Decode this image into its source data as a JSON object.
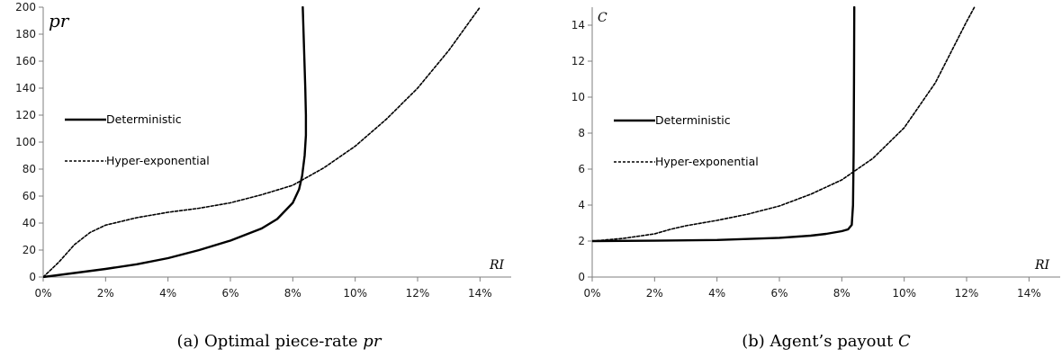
{
  "chart_data": [
    {
      "type": "line",
      "caption": "(a) Optimal piece-rate",
      "caption_var": "pr",
      "ylabel": "pr",
      "xlabel": "RI",
      "xlim": [
        0,
        0.15
      ],
      "ylim": [
        0,
        200
      ],
      "x_ticks": [
        0,
        0.02,
        0.04,
        0.06,
        0.08,
        0.1,
        0.12,
        0.14
      ],
      "x_tick_labels": [
        "0%",
        "2%",
        "4%",
        "6%",
        "8%",
        "10%",
        "12%",
        "14%"
      ],
      "y_ticks": [
        0,
        20,
        40,
        60,
        80,
        100,
        120,
        140,
        160,
        180,
        200
      ],
      "y_tick_labels": [
        "0",
        "20",
        "40",
        "60",
        "80",
        "100",
        "120",
        "140",
        "160",
        "180",
        "200"
      ],
      "grid": false,
      "legend_position": "middle-left",
      "series": [
        {
          "name": "Deterministic",
          "style": "solid",
          "points": [
            [
              0,
              0
            ],
            [
              0.01,
              3
            ],
            [
              0.02,
              6
            ],
            [
              0.03,
              9.5
            ],
            [
              0.04,
              14
            ],
            [
              0.05,
              20
            ],
            [
              0.06,
              27
            ],
            [
              0.07,
              36
            ],
            [
              0.075,
              43
            ],
            [
              0.08,
              55
            ],
            [
              0.082,
              65
            ],
            [
              0.083,
              75
            ],
            [
              0.0838,
              90
            ],
            [
              0.0842,
              105
            ],
            [
              0.0842,
              120
            ],
            [
              0.084,
              140
            ],
            [
              0.0836,
              170
            ],
            [
              0.0832,
              200
            ]
          ]
        },
        {
          "name": "Hyper-exponential",
          "style": "dashed",
          "points": [
            [
              0,
              0
            ],
            [
              0.005,
              11
            ],
            [
              0.01,
              24
            ],
            [
              0.015,
              33
            ],
            [
              0.02,
              38.5
            ],
            [
              0.03,
              44
            ],
            [
              0.04,
              48
            ],
            [
              0.05,
              51
            ],
            [
              0.06,
              55
            ],
            [
              0.07,
              61
            ],
            [
              0.08,
              68
            ],
            [
              0.09,
              81
            ],
            [
              0.1,
              97
            ],
            [
              0.11,
              117
            ],
            [
              0.12,
              140
            ],
            [
              0.13,
              168
            ],
            [
              0.14,
              200
            ]
          ]
        }
      ]
    },
    {
      "type": "line",
      "caption": "(b) Agent’s payout",
      "caption_var": "C",
      "ylabel": "C",
      "xlabel": "RI",
      "xlim": [
        0,
        0.15
      ],
      "ylim": [
        0,
        15
      ],
      "x_ticks": [
        0,
        0.02,
        0.04,
        0.06,
        0.08,
        0.1,
        0.12,
        0.14
      ],
      "x_tick_labels": [
        "0%",
        "2%",
        "4%",
        "6%",
        "8%",
        "10%",
        "12%",
        "14%"
      ],
      "y_ticks": [
        0,
        2,
        4,
        6,
        8,
        10,
        12,
        14
      ],
      "y_tick_labels": [
        "0",
        "2",
        "4",
        "6",
        "8",
        "10",
        "12",
        "14"
      ],
      "grid": false,
      "legend_position": "upper-left",
      "series": [
        {
          "name": "Deterministic",
          "style": "solid",
          "points": [
            [
              0,
              2
            ],
            [
              0.02,
              2.02
            ],
            [
              0.04,
              2.06
            ],
            [
              0.06,
              2.18
            ],
            [
              0.07,
              2.3
            ],
            [
              0.075,
              2.4
            ],
            [
              0.08,
              2.55
            ],
            [
              0.082,
              2.65
            ],
            [
              0.0832,
              2.9
            ],
            [
              0.0836,
              4
            ],
            [
              0.0838,
              7
            ],
            [
              0.0839,
              11
            ],
            [
              0.084,
              15
            ]
          ]
        },
        {
          "name": "Hyper-exponential",
          "style": "dashed",
          "points": [
            [
              0,
              2
            ],
            [
              0.01,
              2.15
            ],
            [
              0.02,
              2.4
            ],
            [
              0.025,
              2.65
            ],
            [
              0.03,
              2.85
            ],
            [
              0.04,
              3.15
            ],
            [
              0.05,
              3.5
            ],
            [
              0.06,
              3.95
            ],
            [
              0.07,
              4.6
            ],
            [
              0.08,
              5.4
            ],
            [
              0.09,
              6.6
            ],
            [
              0.1,
              8.3
            ],
            [
              0.11,
              10.8
            ],
            [
              0.12,
              14.2
            ],
            [
              0.1225,
              15
            ]
          ]
        }
      ]
    }
  ]
}
